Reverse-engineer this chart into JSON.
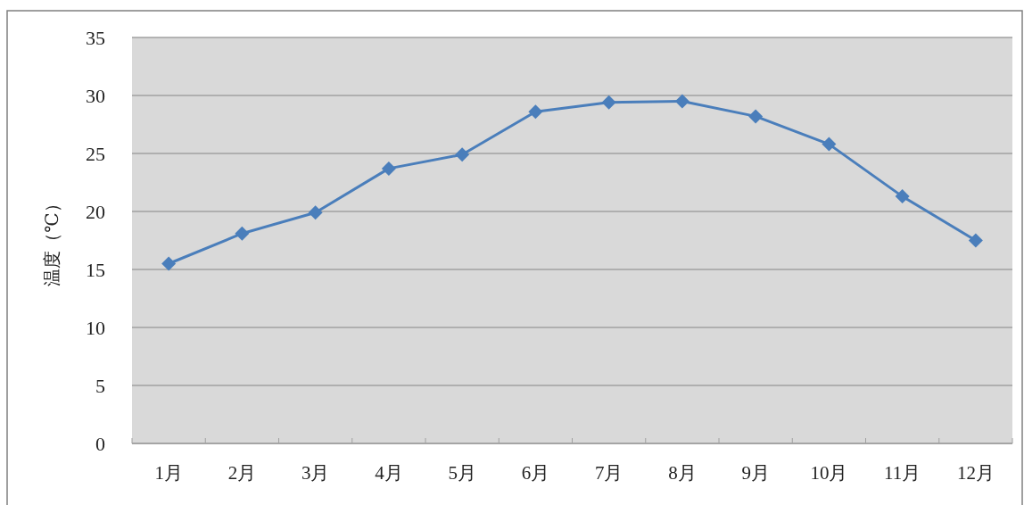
{
  "chart_data": {
    "type": "line",
    "ylabel": "温度（℃）",
    "categories": [
      "1月",
      "2月",
      "3月",
      "4月",
      "5月",
      "6月",
      "7月",
      "8月",
      "9月",
      "10月",
      "11月",
      "12月"
    ],
    "series": [
      {
        "color": "#4a7ebb",
        "values": [
          15.5,
          18.1,
          19.9,
          23.7,
          24.9,
          28.6,
          29.4,
          29.5,
          28.2,
          25.8,
          21.3,
          17.5
        ]
      }
    ],
    "ylim": [
      0,
      35
    ],
    "yticks": [
      0,
      5,
      10,
      15,
      20,
      25,
      30,
      35
    ],
    "grid": "y",
    "marker": "diamond",
    "line_style": "solid"
  }
}
